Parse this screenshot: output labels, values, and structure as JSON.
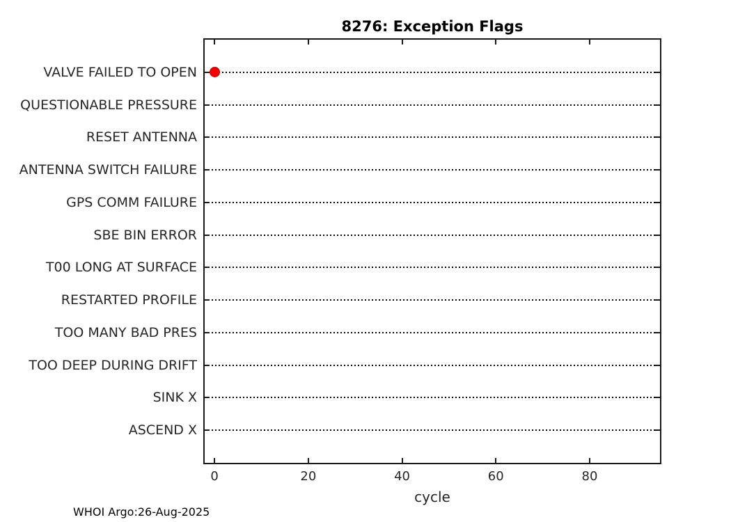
{
  "figure": {
    "title": "8276: Exception Flags",
    "footer": "WHOI Argo:26-Aug-2025"
  },
  "chart_data": {
    "type": "scatter",
    "title": "8276: Exception Flags",
    "xlabel": "cycle",
    "ylabel": "",
    "categories": [
      "VALVE FAILED TO OPEN",
      "QUESTIONABLE PRESSURE",
      "RESET ANTENNA",
      "ANTENNA SWITCH FAILURE",
      "GPS COMM FAILURE",
      "SBE BIN ERROR",
      "T00 LONG AT SURFACE",
      "RESTARTED PROFILE",
      "TOO MANY BAD PRES",
      "TOO DEEP DURING DRIFT",
      "SINK X",
      "ASCEND X"
    ],
    "x_ticks": [
      0,
      20,
      40,
      60,
      80
    ],
    "xlim": [
      -2.1,
      95
    ],
    "points": [
      {
        "category": "VALVE FAILED TO OPEN",
        "x": 0
      }
    ],
    "grid": "dotted horizontal line per category row",
    "legend": "none",
    "box": "on, ticks inward on all four sides",
    "marker": {
      "shape": "filled-circle",
      "color": "#f40000",
      "edge_color": "#cc0000"
    },
    "colors": {
      "axis": "#1a1a1a",
      "tick_label_text": "#262626",
      "title_text": "#000000",
      "gridline": "#000000",
      "background": "#ffffff"
    }
  }
}
